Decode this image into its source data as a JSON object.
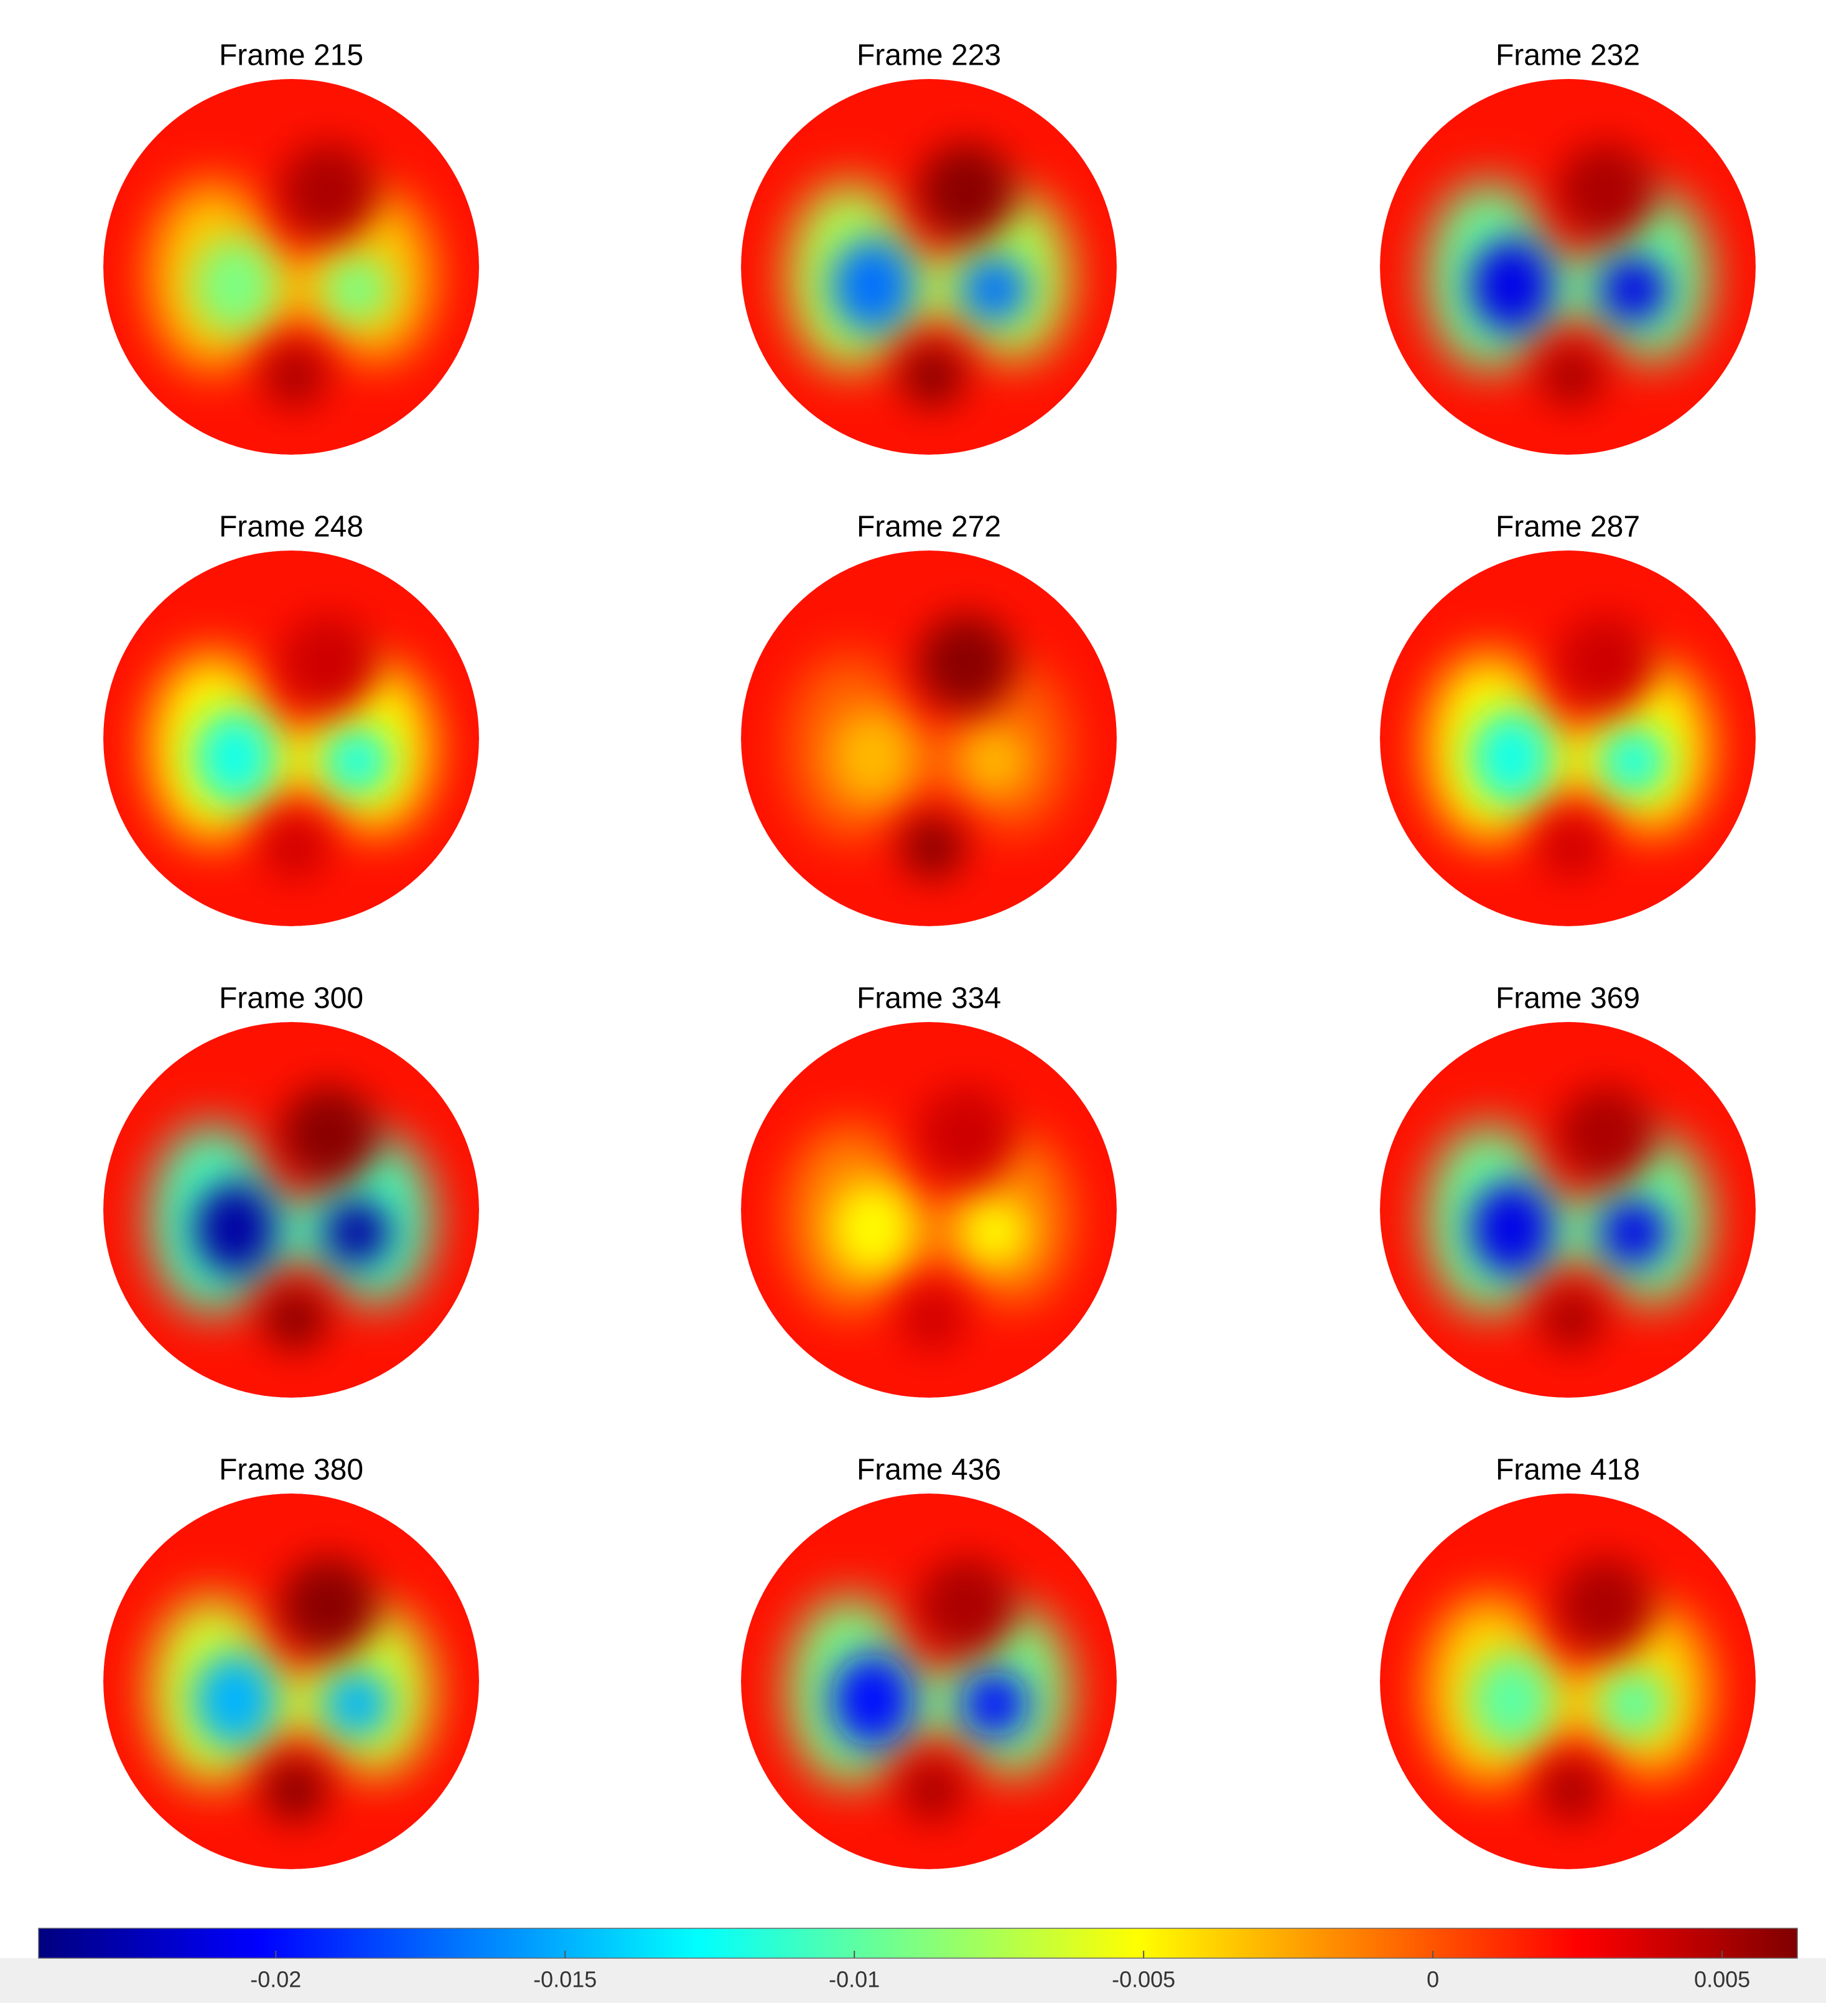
{
  "chart_data": {
    "type": "eit-panels",
    "colormap": "jet",
    "base": 0.002,
    "panels": [
      {
        "title": "Frame 215",
        "low": -0.009,
        "high": 0.005
      },
      {
        "title": "Frame 223",
        "low": -0.017,
        "high": 0.006
      },
      {
        "title": "Frame 232",
        "low": -0.021,
        "high": 0.005
      },
      {
        "title": "Frame 248",
        "low": -0.012,
        "high": 0.004
      },
      {
        "title": "Frame 272",
        "low": -0.003,
        "high": 0.006
      },
      {
        "title": "Frame 287",
        "low": -0.012,
        "high": 0.004
      },
      {
        "title": "Frame 300",
        "low": -0.023,
        "high": 0.006
      },
      {
        "title": "Frame 334",
        "low": -0.005,
        "high": 0.004
      },
      {
        "title": "Frame 369",
        "low": -0.021,
        "high": 0.005
      },
      {
        "title": "Frame 380",
        "low": -0.015,
        "high": 0.006
      },
      {
        "title": "Frame 436",
        "low": -0.02,
        "high": 0.005
      },
      {
        "title": "Frame 418",
        "low": -0.01,
        "high": 0.005
      }
    ],
    "clim": [
      -0.0241,
      0.0063
    ],
    "cticks": [
      -0.02,
      -0.015,
      -0.01,
      -0.005,
      0,
      0.005
    ]
  }
}
